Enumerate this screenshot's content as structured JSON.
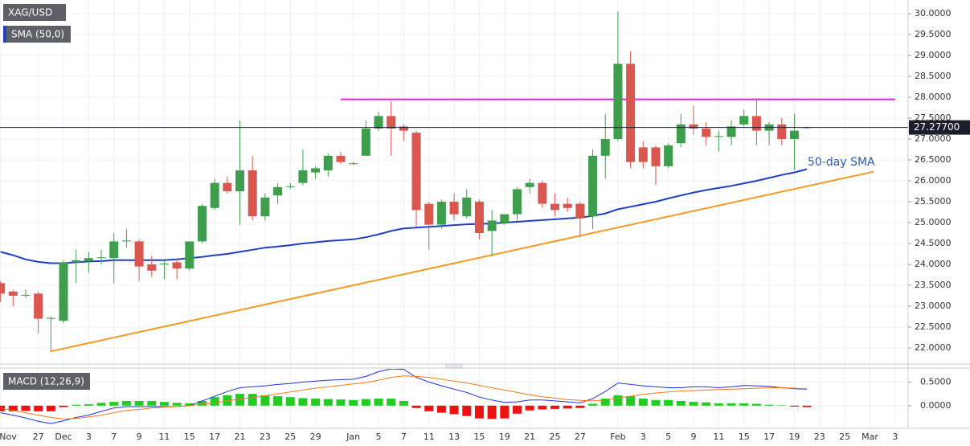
{
  "chart_data": {
    "type": "candlestick",
    "symbol": "XAG/USD",
    "indicator_label": "SMA (50,0)",
    "annotation": "50-day SMA",
    "up_color": "#3f9e4d",
    "down_color": "#d9574e",
    "categories": [
      "Nov",
      null,
      null,
      "27",
      null,
      "Dec",
      null,
      "3",
      null,
      "7",
      null,
      "9",
      null,
      "11",
      null,
      "15",
      null,
      "17",
      null,
      "21",
      null,
      "23",
      null,
      "25",
      null,
      "29",
      null,
      null,
      "Jan",
      null,
      "5",
      null,
      "7",
      null,
      "11",
      null,
      "13",
      null,
      "15",
      null,
      "19",
      null,
      "21",
      null,
      "25",
      null,
      "27",
      null,
      null,
      "Feb",
      null,
      "3",
      null,
      "5",
      null,
      "9",
      null,
      "11",
      null,
      "15",
      null,
      "17",
      null,
      "19",
      null,
      "23",
      null,
      "25",
      null,
      "Mar",
      null,
      "3"
    ],
    "open": [
      23.55,
      23.35,
      23.25,
      23.3,
      22.7,
      22.65,
      24.05,
      24.08,
      24.15,
      24.15,
      24.55,
      24.55,
      24.0,
      24.0,
      24.05,
      23.9,
      24.55,
      25.35,
      25.95,
      25.75,
      26.25,
      25.15,
      25.65,
      25.85,
      25.95,
      26.2,
      26.25,
      26.6,
      26.4,
      26.6,
      27.25,
      27.55,
      27.3,
      27.15,
      25.45,
      24.95,
      25.5,
      25.15,
      25.5,
      24.8,
      25.0,
      25.2,
      25.85,
      25.95,
      25.45,
      25.45,
      25.45,
      25.15,
      26.6,
      27.0,
      28.8,
      26.8,
      26.8,
      26.35,
      26.9,
      27.35,
      27.25,
      27.05,
      27.05,
      27.35,
      27.55,
      27.2,
      27.35,
      27.0,
      27.27,
      null,
      null,
      null,
      null,
      null,
      null,
      null
    ],
    "high": [
      23.6,
      23.4,
      23.4,
      23.35,
      22.75,
      24.1,
      24.35,
      24.3,
      24.35,
      24.75,
      24.85,
      24.6,
      24.2,
      24.1,
      24.15,
      24.55,
      25.45,
      26.05,
      26.1,
      27.45,
      26.6,
      25.7,
      25.95,
      25.95,
      26.75,
      26.35,
      26.65,
      26.7,
      26.45,
      27.45,
      27.65,
      27.9,
      27.35,
      27.2,
      25.5,
      25.55,
      25.7,
      25.8,
      25.55,
      25.3,
      25.2,
      25.85,
      26.05,
      26.0,
      25.7,
      25.6,
      25.5,
      26.75,
      27.6,
      30.05,
      29.1,
      26.95,
      26.85,
      26.9,
      27.6,
      27.8,
      27.4,
      27.2,
      27.45,
      27.7,
      27.95,
      27.4,
      27.5,
      27.6,
      27.3,
      null,
      null,
      null,
      null,
      null,
      null,
      null
    ],
    "low": [
      23.1,
      23.0,
      23.2,
      22.35,
      21.9,
      22.6,
      23.55,
      23.8,
      24.0,
      23.55,
      24.4,
      23.6,
      23.7,
      23.65,
      23.65,
      23.85,
      24.5,
      25.3,
      25.7,
      24.95,
      25.05,
      25.05,
      25.45,
      25.8,
      25.9,
      26.05,
      26.1,
      26.4,
      26.38,
      26.6,
      27.2,
      26.6,
      26.95,
      24.9,
      24.35,
      24.85,
      25.05,
      25.1,
      24.6,
      24.2,
      24.95,
      25.05,
      25.7,
      25.35,
      25.15,
      25.25,
      24.65,
      24.85,
      26.05,
      26.95,
      26.3,
      26.3,
      25.9,
      26.3,
      26.8,
      27.1,
      26.85,
      26.7,
      26.85,
      27.3,
      26.85,
      26.85,
      26.85,
      26.25,
      27.25,
      null,
      null,
      null,
      null,
      null,
      null,
      null
    ],
    "close": [
      23.3,
      23.25,
      23.27,
      22.7,
      22.72,
      24.05,
      24.1,
      24.15,
      24.17,
      24.55,
      24.57,
      23.95,
      23.85,
      24.02,
      23.9,
      24.55,
      25.4,
      25.95,
      25.75,
      26.25,
      25.15,
      25.6,
      25.85,
      25.87,
      26.25,
      26.3,
      26.6,
      26.45,
      26.42,
      27.25,
      27.55,
      27.25,
      27.2,
      25.3,
      24.95,
      25.5,
      25.2,
      25.6,
      24.75,
      25.05,
      25.2,
      25.8,
      25.95,
      25.45,
      25.3,
      25.35,
      25.1,
      26.6,
      27.0,
      28.8,
      26.45,
      26.45,
      26.35,
      26.85,
      27.35,
      27.25,
      27.05,
      27.07,
      27.3,
      27.55,
      27.2,
      27.35,
      27.0,
      27.2,
      27.28,
      null,
      null,
      null,
      null,
      null,
      null,
      null
    ],
    "sma": {
      "name": "SMA (50,0)",
      "color": "#1f3fc4",
      "values": [
        24.3,
        24.22,
        24.12,
        24.06,
        24.03,
        24.03,
        24.05,
        24.07,
        24.08,
        24.1,
        24.1,
        24.1,
        24.1,
        24.1,
        24.12,
        24.15,
        24.18,
        24.22,
        24.25,
        24.3,
        24.35,
        24.4,
        24.43,
        24.46,
        24.5,
        24.53,
        24.56,
        24.58,
        24.6,
        24.65,
        24.72,
        24.8,
        24.86,
        24.88,
        24.9,
        24.92,
        24.94,
        24.96,
        24.97,
        24.98,
        25.0,
        25.02,
        25.04,
        25.06,
        25.08,
        25.1,
        25.12,
        25.16,
        25.22,
        25.32,
        25.38,
        25.44,
        25.5,
        25.58,
        25.65,
        25.72,
        25.78,
        25.83,
        25.88,
        25.94,
        26.0,
        26.07,
        26.14,
        26.2,
        26.28,
        null,
        null,
        null,
        null,
        null,
        null,
        null
      ]
    },
    "resistance": {
      "color": "#e020e0",
      "x": [
        27,
        71
      ],
      "y": [
        27.95,
        27.95
      ]
    },
    "trendline": {
      "color": "#f59a23",
      "x": [
        4,
        69.3
      ],
      "y": [
        21.92,
        26.22
      ]
    },
    "current_price": {
      "value": 27.277,
      "label": "27.27700"
    },
    "ylim": [
      21.635,
      30.327
    ],
    "yticks": [
      {
        "value": 22,
        "label": "22.0000"
      },
      {
        "value": 22.5,
        "label": "22.5000"
      },
      {
        "value": 23,
        "label": "23.0000"
      },
      {
        "value": 23.5,
        "label": "23.5000"
      },
      {
        "value": 24,
        "label": "24.0000"
      },
      {
        "value": 24.5,
        "label": "24.5000"
      },
      {
        "value": 25,
        "label": "25.0000"
      },
      {
        "value": 25.5,
        "label": "25.5000"
      },
      {
        "value": 26,
        "label": "26.0000"
      },
      {
        "value": 26.5,
        "label": "26.5000"
      },
      {
        "value": 27,
        "label": "27.0000"
      },
      {
        "value": 27.5,
        "label": "27.5000"
      },
      {
        "value": 28,
        "label": "28.0000"
      },
      {
        "value": 28.5,
        "label": "28.5000"
      },
      {
        "value": 29,
        "label": "29.0000"
      },
      {
        "value": 29.5,
        "label": "29.5000"
      },
      {
        "value": 30,
        "label": "30.0000"
      }
    ],
    "grid": true,
    "macd": {
      "title": "MACD (12,26,9)",
      "ylim": [
        -0.48,
        0.78
      ],
      "yticks": [
        {
          "value": 0,
          "label": "0.0000"
        },
        {
          "value": 0.5,
          "label": "0.5000"
        }
      ],
      "up_color": "#22cc22",
      "down_color": "#ee1111",
      "histogram": [
        -0.12,
        -0.12,
        -0.11,
        -0.12,
        -0.12,
        -0.03,
        0.02,
        0.03,
        0.06,
        0.08,
        0.1,
        0.1,
        0.1,
        0.08,
        0.06,
        0.05,
        0.1,
        0.18,
        0.22,
        0.25,
        0.25,
        0.22,
        0.2,
        0.18,
        0.16,
        0.15,
        0.14,
        0.13,
        0.12,
        0.14,
        0.15,
        0.15,
        0.1,
        -0.05,
        -0.12,
        -0.15,
        -0.18,
        -0.22,
        -0.27,
        -0.28,
        -0.27,
        -0.17,
        -0.1,
        -0.08,
        -0.07,
        -0.06,
        -0.05,
        0.04,
        0.15,
        0.22,
        0.2,
        0.15,
        0.12,
        0.12,
        0.1,
        0.08,
        0.07,
        0.05,
        0.05,
        0.05,
        0.04,
        0.02,
        0.005,
        -0.02,
        -0.03,
        null,
        null,
        null,
        null,
        null,
        null,
        null
      ],
      "macd_line": {
        "color": "#2233dd",
        "values": [
          -0.15,
          -0.2,
          -0.26,
          -0.33,
          -0.38,
          -0.32,
          -0.25,
          -0.2,
          -0.12,
          -0.05,
          -0.02,
          -0.02,
          -0.02,
          -0.02,
          -0.02,
          0.0,
          0.1,
          0.2,
          0.3,
          0.38,
          0.4,
          0.42,
          0.45,
          0.47,
          0.5,
          0.52,
          0.54,
          0.55,
          0.56,
          0.62,
          0.72,
          0.78,
          0.77,
          0.6,
          0.5,
          0.42,
          0.35,
          0.28,
          0.18,
          0.12,
          0.07,
          0.08,
          0.12,
          0.12,
          0.1,
          0.08,
          0.06,
          0.15,
          0.3,
          0.48,
          0.45,
          0.42,
          0.4,
          0.38,
          0.38,
          0.4,
          0.4,
          0.38,
          0.4,
          0.43,
          0.42,
          0.41,
          0.38,
          0.36,
          0.35,
          null,
          null,
          null,
          null,
          null,
          null,
          null
        ]
      },
      "signal_line": {
        "color": "#f07a1a",
        "values": [
          -0.05,
          -0.1,
          -0.15,
          -0.2,
          -0.25,
          -0.28,
          -0.27,
          -0.24,
          -0.2,
          -0.15,
          -0.1,
          -0.08,
          -0.05,
          -0.03,
          -0.02,
          0.0,
          0.03,
          0.06,
          0.1,
          0.14,
          0.17,
          0.21,
          0.25,
          0.29,
          0.33,
          0.37,
          0.4,
          0.43,
          0.46,
          0.49,
          0.54,
          0.6,
          0.63,
          0.62,
          0.6,
          0.56,
          0.52,
          0.48,
          0.43,
          0.38,
          0.33,
          0.28,
          0.23,
          0.19,
          0.16,
          0.13,
          0.11,
          0.1,
          0.12,
          0.16,
          0.2,
          0.24,
          0.27,
          0.29,
          0.31,
          0.32,
          0.33,
          0.34,
          0.35,
          0.36,
          0.37,
          0.38,
          0.38,
          0.37,
          0.36,
          null,
          null,
          null,
          null,
          null,
          null,
          null
        ]
      }
    }
  }
}
